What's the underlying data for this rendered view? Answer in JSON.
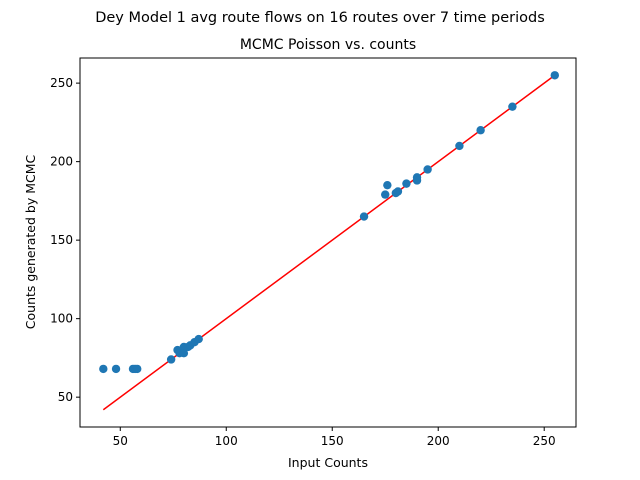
{
  "figure": {
    "suptitle": "Dey Model 1 avg route flows on 16 routes over 7 time periods",
    "title": "MCMC Poisson vs. counts"
  },
  "chart_data": {
    "type": "scatter",
    "title": "MCMC Poisson vs. counts",
    "xlabel": "Input Counts",
    "ylabel": "Counts generated by MCMC",
    "xlim": [
      31,
      265
    ],
    "ylim": [
      31,
      266
    ],
    "xticks": [
      50,
      100,
      150,
      200,
      250
    ],
    "yticks": [
      50,
      100,
      150,
      200,
      250
    ],
    "grid": false,
    "points_color": "#1f77b4",
    "fit_color": "#ff0000",
    "points": [
      {
        "x": 42,
        "y": 68
      },
      {
        "x": 48,
        "y": 68
      },
      {
        "x": 56,
        "y": 68
      },
      {
        "x": 57,
        "y": 68
      },
      {
        "x": 58,
        "y": 68
      },
      {
        "x": 74,
        "y": 74
      },
      {
        "x": 77,
        "y": 80
      },
      {
        "x": 78,
        "y": 78
      },
      {
        "x": 80,
        "y": 82
      },
      {
        "x": 80,
        "y": 78
      },
      {
        "x": 82,
        "y": 82
      },
      {
        "x": 83,
        "y": 83
      },
      {
        "x": 85,
        "y": 85
      },
      {
        "x": 87,
        "y": 87
      },
      {
        "x": 165,
        "y": 165
      },
      {
        "x": 175,
        "y": 179
      },
      {
        "x": 176,
        "y": 185
      },
      {
        "x": 180,
        "y": 180
      },
      {
        "x": 181,
        "y": 181
      },
      {
        "x": 185,
        "y": 186
      },
      {
        "x": 190,
        "y": 190
      },
      {
        "x": 190,
        "y": 188
      },
      {
        "x": 195,
        "y": 195
      },
      {
        "x": 210,
        "y": 210
      },
      {
        "x": 220,
        "y": 220
      },
      {
        "x": 235,
        "y": 235
      },
      {
        "x": 255,
        "y": 255
      }
    ],
    "fit_line": [
      {
        "x": 42,
        "y": 42
      },
      {
        "x": 255,
        "y": 255
      }
    ]
  }
}
